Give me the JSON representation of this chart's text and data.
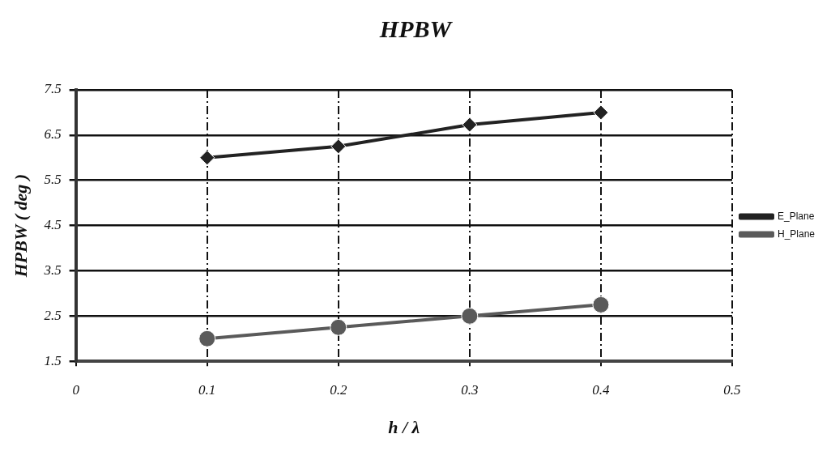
{
  "chart_data": {
    "type": "line",
    "title": "HPBW",
    "xlabel": "h / λ",
    "ylabel": "HPBW ( deg )",
    "x": [
      0.1,
      0.2,
      0.3,
      0.4
    ],
    "series": [
      {
        "name": "E_Plane",
        "color": "#222222",
        "marker": "diamond",
        "values": [
          6.0,
          6.25,
          6.73,
          7.0
        ]
      },
      {
        "name": "H_Plane",
        "color": "#5a5a5a",
        "marker": "circle",
        "values": [
          2.0,
          2.25,
          2.5,
          2.75
        ]
      }
    ],
    "xlim": [
      0,
      0.5
    ],
    "xticks": [
      0,
      0.1,
      0.2,
      0.3,
      0.4,
      0.5
    ],
    "ylim": [
      1.5,
      7.5
    ],
    "yticks": [
      1.5,
      2.5,
      3.5,
      4.5,
      5.5,
      6.5,
      7.5
    ],
    "grid": true,
    "legend": "right",
    "line_style": "solid"
  }
}
